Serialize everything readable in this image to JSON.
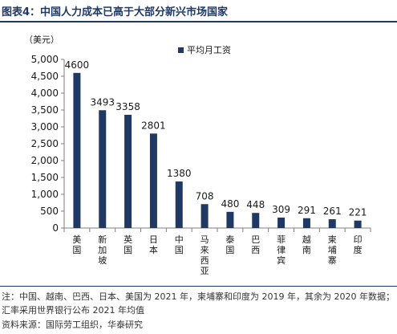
{
  "title": "图表4：中国人力成本已高于大部分新兴市场国家",
  "chart_data": {
    "type": "bar",
    "unit_label": "（美元）",
    "categories": [
      "美国",
      "新加坡",
      "英国",
      "日本",
      "中国",
      "马来西亚",
      "泰国",
      "巴西",
      "菲律宾",
      "越南",
      "柬埔寨",
      "印度"
    ],
    "series": [
      {
        "name": "平均月工资",
        "values": [
          4600,
          3493,
          3358,
          2801,
          1380,
          708,
          480,
          448,
          309,
          291,
          261,
          221
        ]
      }
    ],
    "value_labels": [
      "4600",
      "3493",
      "3358",
      "2801",
      "1380",
      "708",
      "480",
      "448",
      "309",
      "291",
      "261",
      "221"
    ],
    "ylim": [
      0,
      5000
    ],
    "yticks": [
      "0",
      "500",
      "1,000",
      "1,500",
      "2,000",
      "2,500",
      "3,000",
      "3,500",
      "4,000",
      "4,500",
      "5,000"
    ],
    "grid": false,
    "legend_position": "top-right",
    "colors": {
      "bar": "#1f3864",
      "axis": "#7f7f7f"
    }
  },
  "note": "注：中国、越南、巴西、日本、美国为 2021 年，柬埔寨和印度为 2019 年，其余为 2020 年数据；汇率采用世界银行公布 2021 年均值",
  "source": "资料来源：国际劳工组织，华泰研究"
}
